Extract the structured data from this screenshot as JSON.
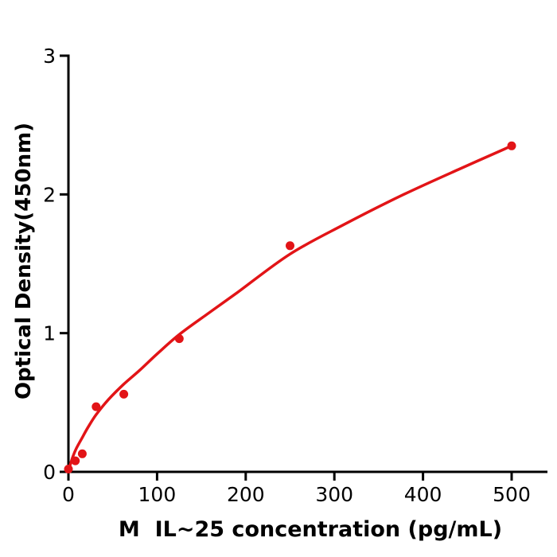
{
  "figure": {
    "background": "#ffffff"
  },
  "chart_data": {
    "type": "scatter",
    "title": "",
    "xlabel": "M  IL~25 concentration (pg/mL)",
    "ylabel": "Optical Density(450nm)",
    "xlim": [
      0,
      540
    ],
    "ylim": [
      0,
      3
    ],
    "x_ticks": [
      0,
      100,
      200,
      300,
      400,
      500
    ],
    "y_ticks": [
      0,
      1,
      2,
      3
    ],
    "grid": false,
    "legend": null,
    "colors": {
      "points": "#e21417",
      "curve": "#e21417",
      "axis": "#000000",
      "background": "#ffffff"
    },
    "points": [
      {
        "x": 0,
        "y": 0.02
      },
      {
        "x": 7.8,
        "y": 0.08
      },
      {
        "x": 15.6,
        "y": 0.13
      },
      {
        "x": 31.25,
        "y": 0.47
      },
      {
        "x": 62.5,
        "y": 0.56
      },
      {
        "x": 125,
        "y": 0.96
      },
      {
        "x": 250,
        "y": 1.63
      },
      {
        "x": 500,
        "y": 2.35
      }
    ],
    "fit_curve": [
      {
        "x": 0,
        "y": 0.0
      },
      {
        "x": 2,
        "y": 0.05
      },
      {
        "x": 5,
        "y": 0.11
      },
      {
        "x": 9,
        "y": 0.17
      },
      {
        "x": 15,
        "y": 0.24
      },
      {
        "x": 22,
        "y": 0.32
      },
      {
        "x": 31,
        "y": 0.41
      },
      {
        "x": 45,
        "y": 0.52
      },
      {
        "x": 62,
        "y": 0.63
      },
      {
        "x": 80,
        "y": 0.73
      },
      {
        "x": 100,
        "y": 0.85
      },
      {
        "x": 125,
        "y": 0.99
      },
      {
        "x": 155,
        "y": 1.13
      },
      {
        "x": 190,
        "y": 1.29
      },
      {
        "x": 250,
        "y": 1.57
      },
      {
        "x": 310,
        "y": 1.78
      },
      {
        "x": 375,
        "y": 1.99
      },
      {
        "x": 440,
        "y": 2.18
      },
      {
        "x": 500,
        "y": 2.35
      }
    ]
  }
}
